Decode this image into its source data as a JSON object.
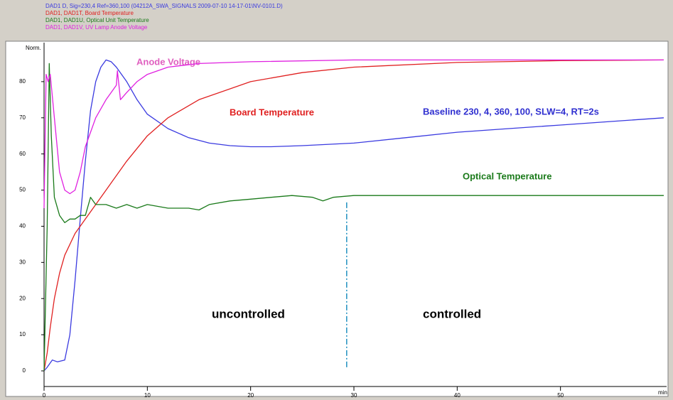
{
  "chart_data": {
    "type": "line",
    "x_label": "min",
    "y_label": "Norm.",
    "xlim": [
      0,
      60
    ],
    "ylim": [
      0,
      90
    ],
    "xticks": [
      0,
      10,
      20,
      30,
      40,
      50
    ],
    "yticks": [
      0,
      10,
      20,
      30,
      40,
      50,
      60,
      70,
      80
    ],
    "divider_x": 29.3,
    "divider_ylim": [
      1,
      47
    ],
    "divider_color": "#2090c0",
    "annotations": {
      "anode": "Anode Voltage",
      "board": "Board Temperature",
      "baseline": "Baseline  230, 4, 360, 100, SLW=4, RT=2s",
      "optical": "Optical Temperature",
      "uncontrolled": "uncontrolled",
      "controlled": "controlled"
    },
    "series": [
      {
        "name": "DAD1 D, Sig=230,4 Ref=360,100 (04212A_SWA_SIGNALS 2009-07-10 14-17-01\\NV-0101.D)",
        "color": "#3a3ae0",
        "x": [
          0,
          0.3,
          0.8,
          1.3,
          2,
          2.5,
          3,
          3.5,
          4,
          4.5,
          5,
          5.5,
          6,
          6.5,
          7,
          8,
          9,
          10,
          12,
          14,
          16,
          18,
          20,
          22,
          25,
          30,
          35,
          40,
          45,
          50,
          55,
          60
        ],
        "values": [
          0,
          1,
          3,
          2.5,
          3,
          10,
          25,
          42,
          58,
          72,
          80,
          84,
          86,
          85.5,
          84,
          80,
          75,
          71,
          67,
          64.5,
          63,
          62.3,
          62,
          62,
          62.3,
          63,
          64.5,
          66,
          67,
          68,
          69,
          70
        ]
      },
      {
        "name": "DAD1, DAD1T, Board Temperature",
        "color": "#e02020",
        "x": [
          0,
          0.3,
          0.6,
          1,
          1.5,
          2,
          3,
          4,
          5,
          6,
          7,
          8,
          10,
          12,
          15,
          20,
          25,
          30,
          40,
          50,
          60
        ],
        "values": [
          0,
          5,
          12,
          20,
          27,
          32,
          38,
          42,
          46,
          50,
          54,
          58,
          65,
          70,
          75,
          80,
          82.5,
          84,
          85.3,
          85.8,
          86
        ]
      },
      {
        "name": "DAD1, DAD1U, Optical Unit Temperature",
        "color": "#1a7a1a",
        "x": [
          0,
          0.3,
          0.5,
          0.7,
          1,
          1.5,
          2,
          2.5,
          3,
          3.5,
          4,
          4.5,
          5,
          6,
          7,
          8,
          9,
          10,
          12,
          14,
          15,
          16,
          18,
          20,
          22,
          24,
          26,
          27,
          28,
          30,
          35,
          40,
          45,
          50,
          55,
          60
        ],
        "values": [
          0,
          40,
          85,
          65,
          48,
          43,
          41,
          42,
          42,
          43,
          43,
          48,
          46,
          46,
          45,
          46,
          45,
          46,
          45,
          45,
          44.5,
          46,
          47,
          47.5,
          48,
          48.5,
          48,
          47,
          48,
          48.5,
          48.5,
          48.5,
          48.5,
          48.5,
          48.5,
          48.5
        ]
      },
      {
        "name": "DAD1, DAD1V, UV Lamp Anode Voltage",
        "color": "#e020e0",
        "x": [
          0,
          0.2,
          0.4,
          0.6,
          1,
          1.5,
          2,
          2.5,
          3,
          3.5,
          4,
          5,
          6,
          7,
          7.1,
          7.4,
          8,
          9,
          10,
          12,
          15,
          20,
          30,
          40,
          50,
          60
        ],
        "values": [
          45,
          82,
          80,
          82,
          70,
          55,
          50,
          49,
          50,
          55,
          62,
          70,
          75,
          79,
          83,
          75,
          77,
          80,
          82,
          84,
          85,
          85.5,
          86,
          86,
          86,
          86
        ]
      }
    ]
  }
}
